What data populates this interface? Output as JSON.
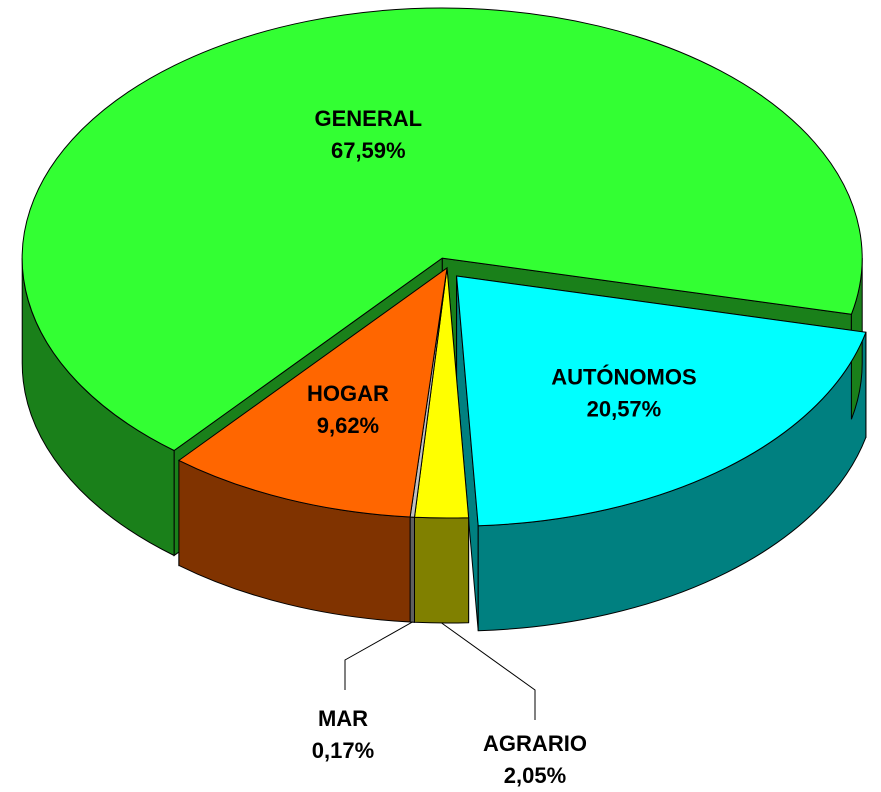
{
  "chart_data": {
    "type": "pie",
    "categories": [
      "AUTÓNOMOS",
      "AGRARIO",
      "MAR",
      "HOGAR",
      "GENERAL"
    ],
    "values": [
      20.57,
      2.05,
      0.17,
      9.62,
      67.59
    ],
    "value_labels": [
      "20,57%",
      "2,05%",
      "0,17%",
      "9,62%",
      "67,59%"
    ],
    "colors": [
      "#00ffff",
      "#ffff00",
      "#c0c0c0",
      "#ff6600",
      "#33ff33"
    ]
  }
}
